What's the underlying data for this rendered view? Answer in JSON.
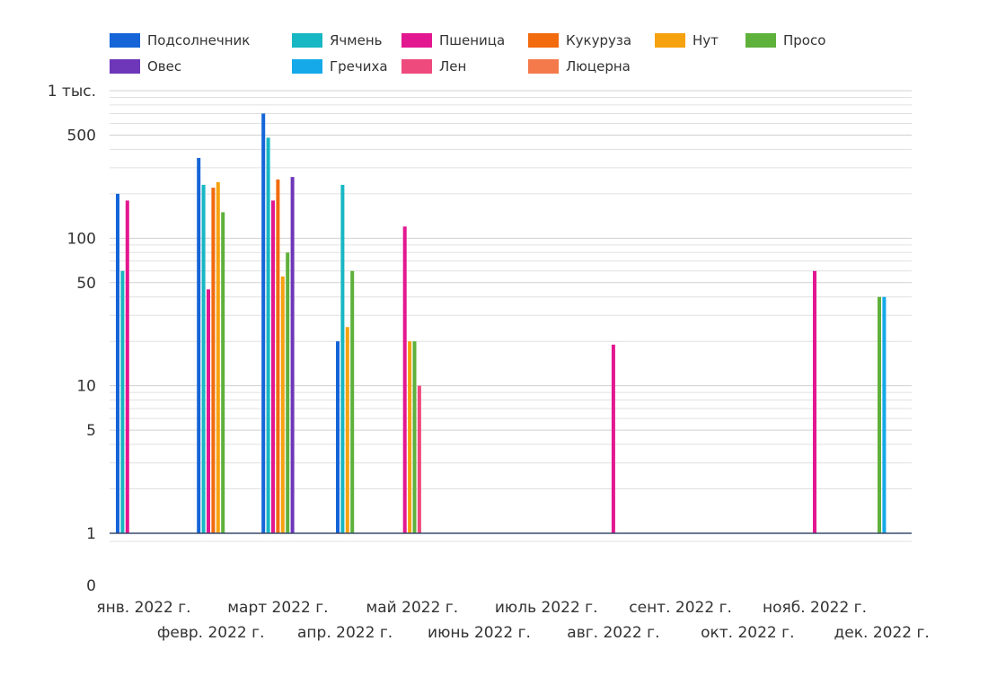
{
  "chart_data": {
    "type": "bar",
    "yscale": "log",
    "ylim": [
      1,
      1000
    ],
    "y_ticks": [
      {
        "value": 1,
        "label": "1"
      },
      {
        "value": 5,
        "label": "5"
      },
      {
        "value": 10,
        "label": "10"
      },
      {
        "value": 50,
        "label": "50"
      },
      {
        "value": 100,
        "label": "100"
      },
      {
        "value": 500,
        "label": "500"
      },
      {
        "value": 1000,
        "label": "1 тыс."
      }
    ],
    "zero_label": "0",
    "legend_position": "top-left",
    "categories": [
      "янв. 2022 г.",
      "февр. 2022 г.",
      "март 2022 г.",
      "апр. 2022 г.",
      "май 2022 г.",
      "июнь 2022 г.",
      "июль 2022 г.",
      "авг. 2022 г.",
      "сент. 2022 г.",
      "окт. 2022 г.",
      "нояб. 2022 г.",
      "дек. 2022 г."
    ],
    "series": [
      {
        "name": "Подсолнечник",
        "color": "#1565d8",
        "values": [
          200,
          350,
          700,
          20,
          null,
          null,
          null,
          null,
          null,
          null,
          null,
          null
        ]
      },
      {
        "name": "Ячмень",
        "color": "#18b7c4",
        "values": [
          60,
          230,
          480,
          230,
          null,
          null,
          null,
          null,
          null,
          null,
          null,
          null
        ]
      },
      {
        "name": "Пшеница",
        "color": "#e3178f",
        "values": [
          180,
          45,
          180,
          null,
          120,
          null,
          null,
          19,
          null,
          null,
          60,
          null
        ]
      },
      {
        "name": "Кукуруза",
        "color": "#f26b0f",
        "values": [
          null,
          220,
          250,
          null,
          null,
          null,
          null,
          null,
          null,
          null,
          null,
          null
        ]
      },
      {
        "name": "Нут",
        "color": "#f6a20e",
        "values": [
          null,
          240,
          55,
          25,
          20,
          null,
          null,
          null,
          null,
          null,
          null,
          null
        ]
      },
      {
        "name": "Просо",
        "color": "#5eb13a",
        "values": [
          null,
          150,
          80,
          60,
          20,
          null,
          null,
          null,
          null,
          null,
          null,
          40
        ]
      },
      {
        "name": "Овес",
        "color": "#6e36b9",
        "values": [
          null,
          null,
          260,
          null,
          null,
          null,
          null,
          null,
          null,
          null,
          null,
          null
        ]
      },
      {
        "name": "Гречиха",
        "color": "#16a9ea",
        "values": [
          null,
          null,
          null,
          null,
          null,
          null,
          null,
          null,
          null,
          null,
          null,
          40
        ]
      },
      {
        "name": "Лен",
        "color": "#ef4a7e",
        "values": [
          null,
          null,
          null,
          null,
          10,
          null,
          null,
          null,
          null,
          null,
          null,
          null
        ]
      },
      {
        "name": "Люцерна",
        "color": "#f47a4b",
        "values": [
          null,
          null,
          null,
          null,
          null,
          null,
          null,
          null,
          null,
          null,
          null,
          null
        ]
      }
    ]
  }
}
